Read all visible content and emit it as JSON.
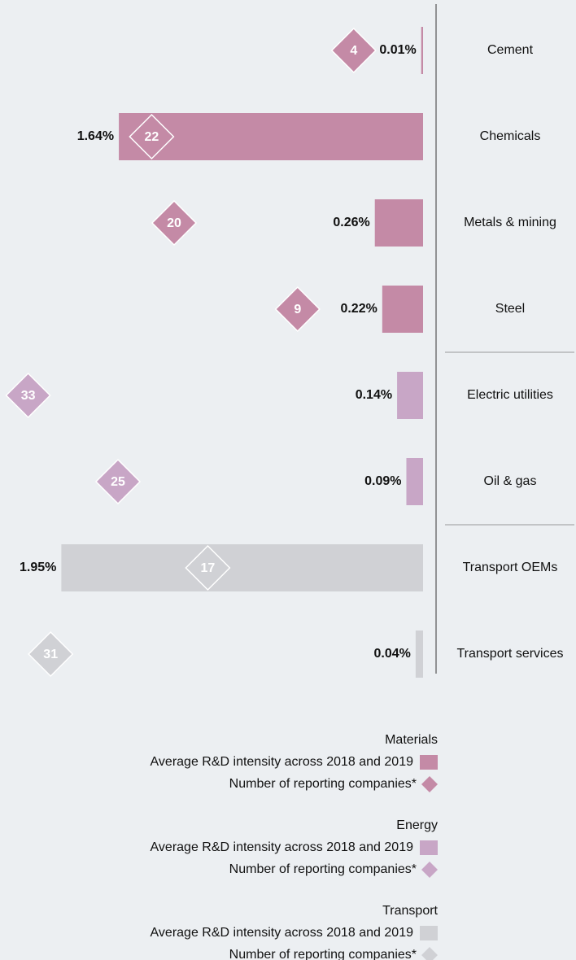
{
  "chart_data": {
    "type": "bar",
    "series": [
      {
        "name": "Materials",
        "color": "#c48aa6",
        "categories": [
          "Cement",
          "Chemicals",
          "Metals & mining",
          "Steel"
        ],
        "values": [
          0.01,
          1.64,
          0.26,
          0.22
        ],
        "value_labels": [
          "0.01%",
          "1.64%",
          "0.26%",
          "0.22%"
        ],
        "counts": [
          4,
          22,
          20,
          9
        ],
        "bar_label": "Average R&D intensity across 2018 and 2019",
        "diamond_label": "Number of reporting companies*"
      },
      {
        "name": "Energy",
        "color": "#c8a6c6",
        "categories": [
          "Electric utilities",
          "Oil & gas"
        ],
        "values": [
          0.14,
          0.09
        ],
        "value_labels": [
          "0.14%",
          "0.09%"
        ],
        "counts": [
          33,
          25
        ],
        "bar_label": "Average R&D intensity across 2018 and 2019",
        "diamond_label": "Number of reporting companies*"
      },
      {
        "name": "Transport",
        "color": "#d0d1d5",
        "categories": [
          "Transport OEMs",
          "Transport services"
        ],
        "values": [
          1.95,
          0.04
        ],
        "value_labels": [
          "1.95%",
          "0.04%"
        ],
        "counts": [
          17,
          31
        ],
        "bar_label": "Average R&D intensity across 2018 and 2019",
        "diamond_label": "Number of reporting companies*"
      }
    ]
  }
}
